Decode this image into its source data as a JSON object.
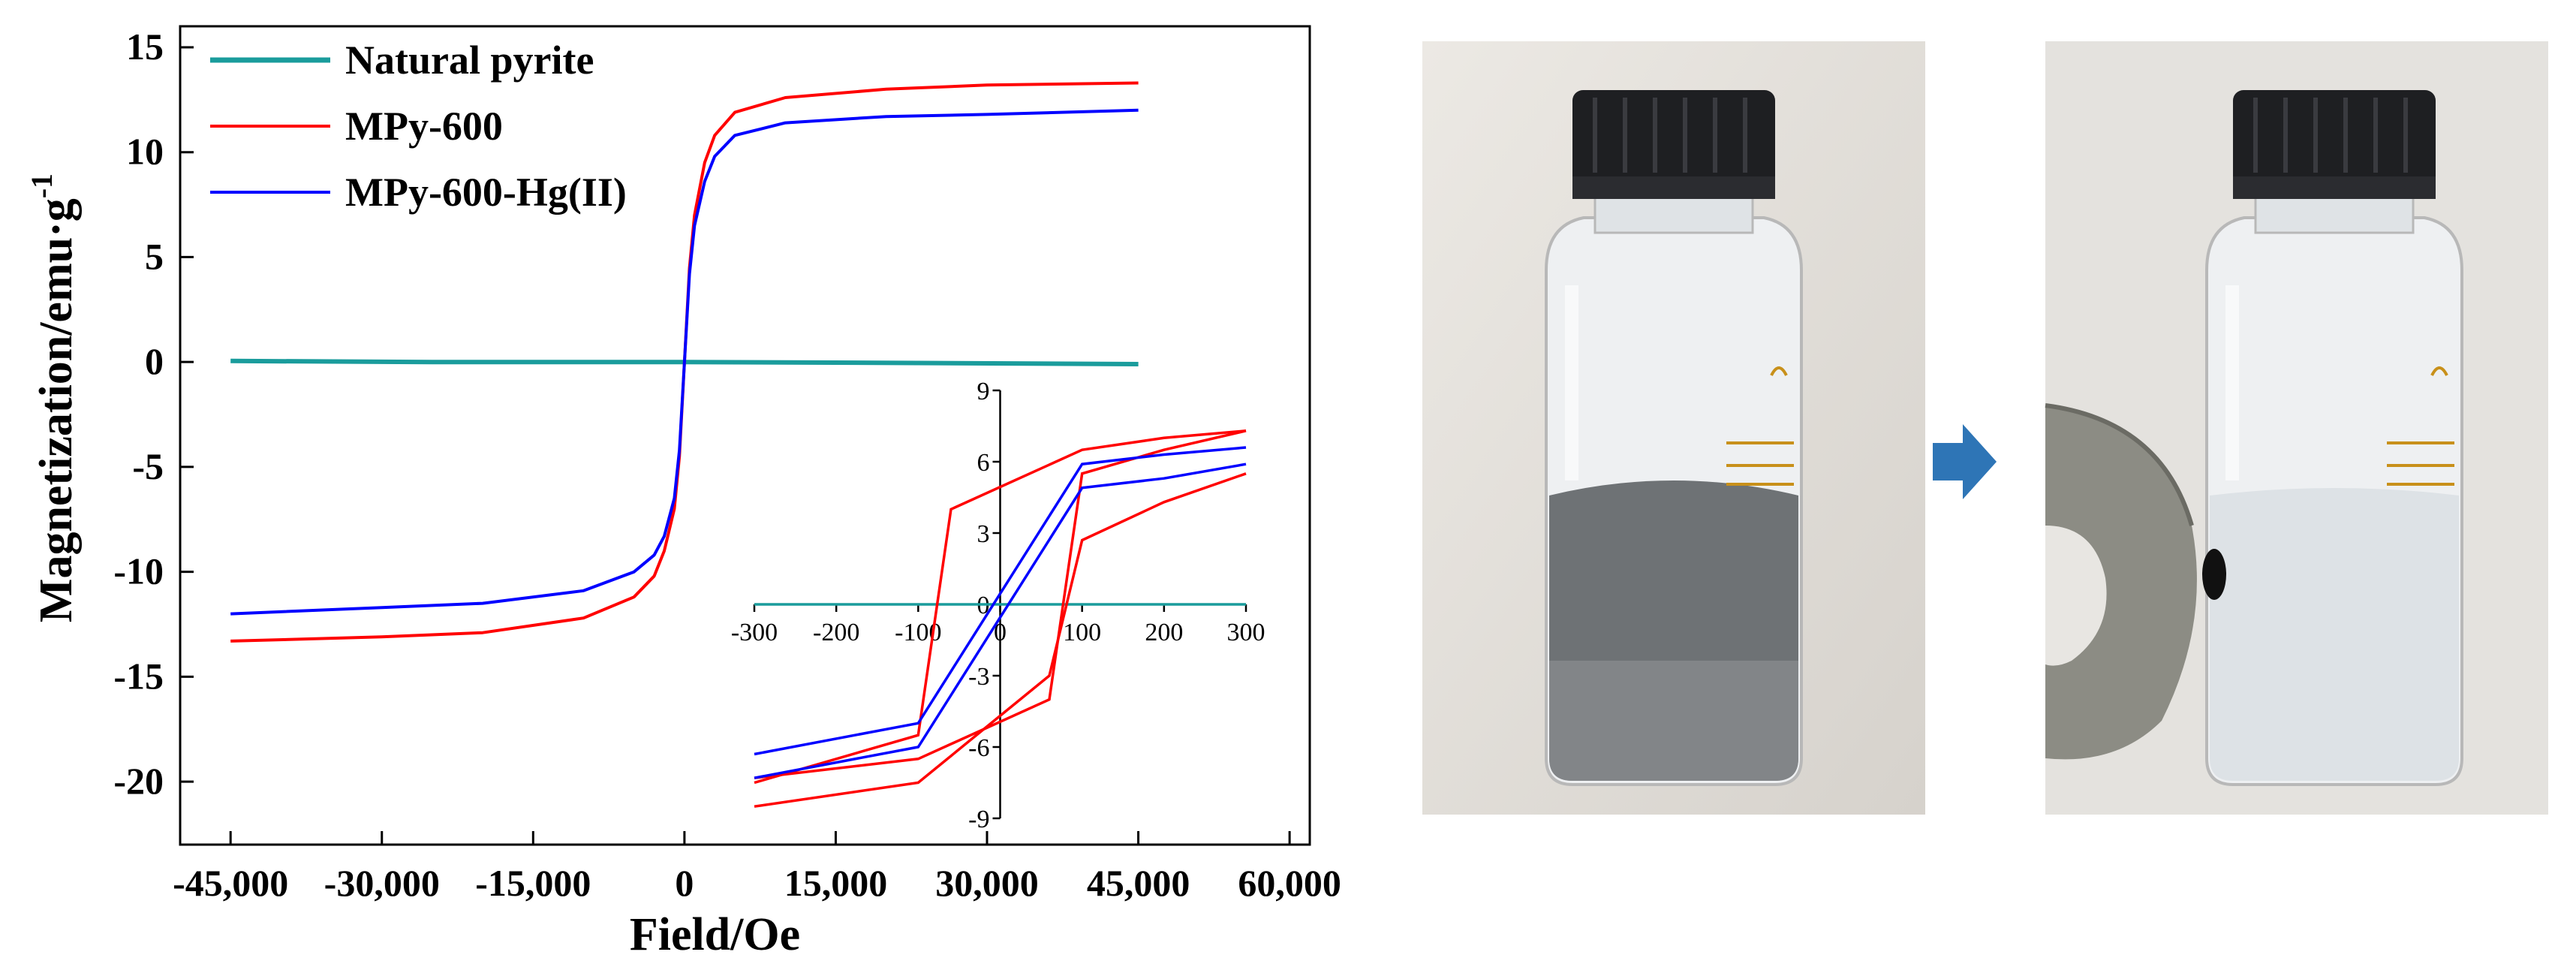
{
  "colors": {
    "natural": "#1a9c9c",
    "mpy600": "#ff0000",
    "mpy600hg": "#0000ff",
    "arrow": "#2e75b6"
  },
  "chart_data": [
    {
      "type": "line",
      "title": "",
      "xlabel": "Field/Oe",
      "ylabel": "Magnetization/emu·g",
      "ylabel_sup": "-1",
      "xlim": [
        -50000,
        62000
      ],
      "ylim": [
        -23,
        16
      ],
      "x_ticks": [
        -45000,
        -30000,
        -15000,
        0,
        15000,
        30000,
        45000,
        60000
      ],
      "x_tick_labels": [
        "-45,000",
        "-30,000",
        "-15,000",
        "0",
        "15,000",
        "30,000",
        "45,000",
        "60,000"
      ],
      "y_ticks": [
        15,
        10,
        5,
        0,
        -5,
        -10,
        -15,
        -20
      ],
      "y_tick_labels": [
        "15",
        "10",
        "5",
        "0",
        "-5",
        "-10",
        "-15",
        "-20"
      ],
      "legend_placement": "top-left",
      "series": [
        {
          "name": "Natural pyrite",
          "x": [
            -45000,
            -25000,
            0,
            25000,
            45000
          ],
          "y": [
            0.05,
            0.0,
            0.0,
            -0.05,
            -0.1
          ]
        },
        {
          "name": "MPy-600",
          "x": [
            -45000,
            -30000,
            -20000,
            -10000,
            -5000,
            -3000,
            -2000,
            -1000,
            -500,
            0,
            500,
            1000,
            2000,
            3000,
            5000,
            10000,
            20000,
            30000,
            45000
          ],
          "y": [
            -13.3,
            -13.1,
            -12.9,
            -12.2,
            -11.2,
            -10.2,
            -9.0,
            -7.0,
            -4.5,
            0,
            4.5,
            7.0,
            9.5,
            10.8,
            11.9,
            12.6,
            13.0,
            13.2,
            13.3
          ]
        },
        {
          "name": "MPy-600-Hg(II)",
          "x": [
            -45000,
            -30000,
            -20000,
            -10000,
            -5000,
            -3000,
            -2000,
            -1000,
            -500,
            0,
            500,
            1000,
            2000,
            3000,
            5000,
            10000,
            20000,
            30000,
            45000
          ],
          "y": [
            -12.0,
            -11.7,
            -11.5,
            -10.9,
            -10.0,
            -9.2,
            -8.3,
            -6.5,
            -4.2,
            0,
            4.2,
            6.5,
            8.6,
            9.8,
            10.8,
            11.4,
            11.7,
            11.8,
            12.0
          ]
        }
      ]
    },
    {
      "type": "line",
      "title": "",
      "xlim": [
        -300,
        300
      ],
      "ylim": [
        -9,
        9
      ],
      "x_ticks": [
        -300,
        -200,
        -100,
        0,
        100,
        200,
        300
      ],
      "x_tick_labels": [
        "-300",
        "-200",
        "-100",
        "0",
        "100",
        "200",
        "300"
      ],
      "y_ticks": [
        9,
        6,
        3,
        0,
        -3,
        -6,
        -9
      ],
      "y_tick_labels": [
        "9",
        "6",
        "3",
        "0",
        "-3",
        "-6",
        "-9"
      ],
      "series": [
        {
          "name": "Natural pyrite",
          "x": [
            -300,
            300
          ],
          "y": [
            0,
            0
          ]
        },
        {
          "name": "MPy-600 ascending",
          "x": [
            -300,
            -100,
            100,
            200,
            300
          ],
          "y": [
            -7.5,
            -5.5,
            2.7,
            4.3,
            5.5
          ]
        },
        {
          "name": "MPy-600 descending",
          "x": [
            -300,
            -200,
            -100,
            100,
            300
          ],
          "y": [
            -7.5,
            -5.0,
            -2.7,
            4.3,
            5.5
          ]
        },
        {
          "name": "MPy-600-Hg(II) upper",
          "x": [
            -300,
            -100,
            100,
            300
          ],
          "y": [
            -6.3,
            -5.0,
            5.0,
            6.1
          ]
        },
        {
          "name": "MPy-600-Hg(II) lower",
          "x": [
            -300,
            -100,
            100,
            300
          ],
          "y": [
            -6.9,
            -5.7,
            4.3,
            5.4
          ]
        }
      ]
    }
  ],
  "inset_curves": {
    "red_outer_upper": {
      "x": [
        -300,
        -100,
        -60,
        100,
        200,
        300
      ],
      "y": [
        -7.5,
        -5.5,
        4.0,
        6.5,
        7.0,
        7.3
      ]
    },
    "red_outer_lower": {
      "x": [
        -300,
        -100,
        60,
        100,
        200,
        300
      ],
      "y": [
        -7.3,
        -6.5,
        -4.0,
        5.5,
        6.5,
        7.3
      ]
    },
    "red_inner_upper": {
      "x": [
        -300,
        -100,
        -60,
        100,
        200,
        300
      ],
      "y": [
        -9.0,
        -8.0,
        4.0,
        6.5,
        7.0,
        7.3
      ]
    }
  }
}
